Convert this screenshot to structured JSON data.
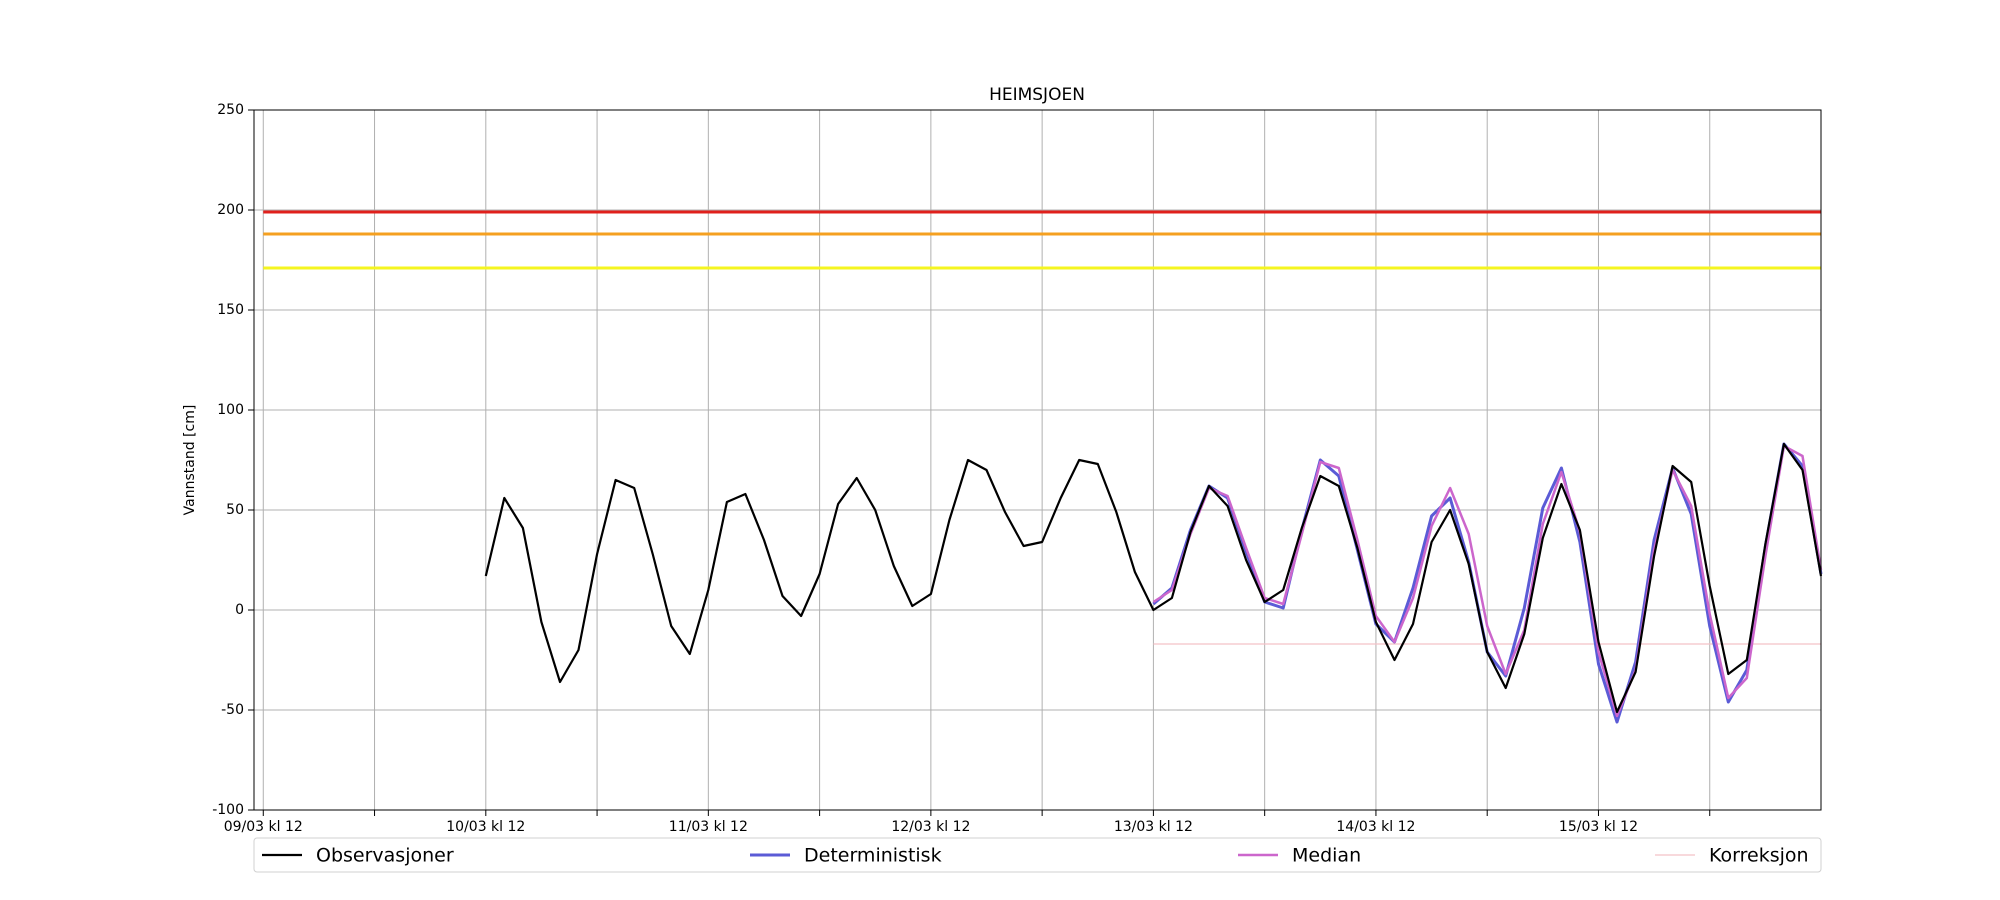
{
  "chart_data": {
    "type": "line",
    "title": "HEIMSJOEN",
    "ylabel": "Vannstand [cm]",
    "x": [
      "10/03 kl 12",
      "10/03 kl 14",
      "10/03 kl 16",
      "10/03 kl 18",
      "10/03 kl 20",
      "10/03 kl 22",
      "11/03 kl 00",
      "11/03 kl 02",
      "11/03 kl 04",
      "11/03 kl 06",
      "11/03 kl 08",
      "11/03 kl 10",
      "11/03 kl 12",
      "11/03 kl 14",
      "11/03 kl 16",
      "11/03 kl 18",
      "11/03 kl 20",
      "11/03 kl 22",
      "12/03 kl 00",
      "12/03 kl 02",
      "12/03 kl 04",
      "12/03 kl 06",
      "12/03 kl 08",
      "12/03 kl 10",
      "12/03 kl 12",
      "12/03 kl 14",
      "12/03 kl 16",
      "12/03 kl 18",
      "12/03 kl 20",
      "12/03 kl 22",
      "13/03 kl 00",
      "13/03 kl 02",
      "13/03 kl 04",
      "13/03 kl 06",
      "13/03 kl 08",
      "13/03 kl 10",
      "13/03 kl 12",
      "13/03 kl 14",
      "13/03 kl 16",
      "13/03 kl 18",
      "13/03 kl 20",
      "13/03 kl 22",
      "14/03 kl 00",
      "14/03 kl 02",
      "14/03 kl 04",
      "14/03 kl 06",
      "14/03 kl 08",
      "14/03 kl 10",
      "14/03 kl 12",
      "14/03 kl 14",
      "14/03 kl 16",
      "14/03 kl 18",
      "14/03 kl 20",
      "14/03 kl 22",
      "15/03 kl 00",
      "15/03 kl 02",
      "15/03 kl 04",
      "15/03 kl 06",
      "15/03 kl 08",
      "15/03 kl 10",
      "15/03 kl 12",
      "15/03 kl 14",
      "15/03 kl 16",
      "15/03 kl 18",
      "15/03 kl 20",
      "15/03 kl 22",
      "16/03 kl 00",
      "16/03 kl 02",
      "16/03 kl 04",
      "16/03 kl 06",
      "16/03 kl 08",
      "16/03 kl 10",
      "16/03 kl 12"
    ],
    "series": [
      {
        "name": "Observasjoner",
        "color": "#000000",
        "width": 2.2,
        "values": [
          17,
          56,
          41,
          -6,
          -36,
          -20,
          28,
          65,
          61,
          28,
          -8,
          -22,
          10,
          54,
          58,
          35,
          7,
          -3,
          18,
          53,
          66,
          50,
          22,
          2,
          8,
          45,
          75,
          70,
          49,
          32,
          34,
          56,
          75,
          73,
          49,
          19,
          0,
          6,
          39,
          62,
          52,
          25,
          4,
          10,
          41,
          67,
          62,
          31,
          -6,
          -25,
          -7,
          34,
          50,
          23,
          -21,
          -39,
          -12,
          36,
          63,
          40,
          -16,
          -51,
          -31,
          27,
          72,
          64,
          12,
          -32,
          -25,
          33,
          83,
          70,
          17
        ]
      },
      {
        "name": "Deterministisk",
        "color": "#5b5bd6",
        "width": 3,
        "values": [
          null,
          null,
          null,
          null,
          null,
          null,
          null,
          null,
          null,
          null,
          null,
          null,
          null,
          null,
          null,
          null,
          null,
          null,
          null,
          null,
          null,
          null,
          null,
          null,
          null,
          null,
          null,
          null,
          null,
          null,
          null,
          null,
          null,
          null,
          null,
          null,
          3,
          11,
          40,
          62,
          56,
          29,
          4,
          1,
          40,
          75,
          67,
          30,
          -7,
          -16,
          11,
          47,
          56,
          24,
          -21,
          -33,
          1,
          51,
          71,
          34,
          -27,
          -56,
          -26,
          35,
          71,
          48,
          -8,
          -46,
          -30,
          32,
          83,
          72,
          18
        ]
      },
      {
        "name": "Median",
        "color": "#cc66cc",
        "width": 2.5,
        "values": [
          null,
          null,
          null,
          null,
          null,
          null,
          null,
          null,
          null,
          null,
          null,
          null,
          null,
          null,
          null,
          null,
          null,
          null,
          null,
          null,
          null,
          null,
          null,
          null,
          null,
          null,
          null,
          null,
          null,
          null,
          null,
          null,
          null,
          null,
          null,
          null,
          4,
          10,
          38,
          61,
          57,
          31,
          6,
          3,
          38,
          74,
          71,
          35,
          -3,
          -16,
          6,
          42,
          61,
          38,
          -8,
          -32,
          -10,
          43,
          69,
          39,
          -21,
          -53,
          -30,
          30,
          70,
          52,
          -2,
          -44,
          -34,
          27,
          82,
          77,
          20
        ]
      },
      {
        "name": "Korreksjon",
        "color": "#f4c2c8",
        "width": 1.2,
        "values": [
          null,
          null,
          null,
          null,
          null,
          null,
          null,
          null,
          null,
          null,
          null,
          null,
          null,
          null,
          null,
          null,
          null,
          null,
          null,
          null,
          null,
          null,
          null,
          null,
          null,
          null,
          null,
          null,
          null,
          null,
          null,
          null,
          null,
          null,
          null,
          null,
          -17,
          -17,
          -17,
          -17,
          -17,
          -17,
          -17,
          -17,
          -17,
          -17,
          -17,
          -17,
          -17,
          -17,
          -17,
          -17,
          -17,
          -17,
          -17,
          -17,
          -17,
          -17,
          -17,
          -17,
          -17,
          -17,
          -17,
          -17,
          -17,
          -17,
          -17,
          -17,
          -17,
          -17,
          -17,
          -17,
          -17
        ]
      }
    ],
    "thresholds": [
      {
        "value": 199,
        "color": "#e0201c"
      },
      {
        "value": 188,
        "color": "#f5a020"
      },
      {
        "value": 171,
        "color": "#f5f520"
      }
    ],
    "xlim": [
      "09/03 kl 11",
      "16/03 kl 12"
    ],
    "xticks": [
      "09/03 kl 12",
      "10/03 kl 12",
      "11/03 kl 12",
      "12/03 kl 12",
      "13/03 kl 12",
      "14/03 kl 12",
      "15/03 kl 12"
    ],
    "xminorticks": [
      "10/03 kl 00",
      "11/03 kl 00",
      "12/03 kl 00",
      "13/03 kl 00",
      "14/03 kl 00",
      "15/03 kl 00",
      "16/03 kl 00"
    ],
    "ylim": [
      -100,
      250
    ],
    "yticks": [
      -100,
      -50,
      0,
      50,
      100,
      150,
      200,
      250
    ],
    "grid": true,
    "legend": "below"
  }
}
